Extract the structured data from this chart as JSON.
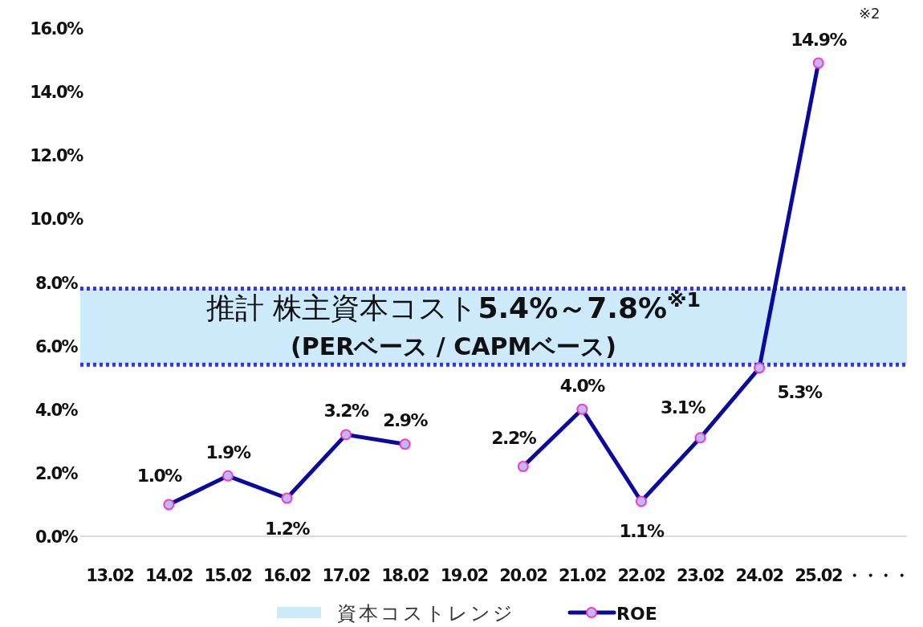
{
  "chart_data": {
    "type": "line",
    "categories": [
      "13.02",
      "14.02",
      "15.02",
      "16.02",
      "17.02",
      "18.02",
      "19.02",
      "20.02",
      "21.02",
      "22.02",
      "23.02",
      "24.02",
      "25.02",
      "・・・・"
    ],
    "series": [
      {
        "name": "ROE",
        "color": "#0a0aa0",
        "values": [
          null,
          1.0,
          1.9,
          1.2,
          3.2,
          2.9,
          null,
          2.2,
          4.0,
          1.1,
          3.1,
          5.3,
          14.9,
          null
        ],
        "value_labels": [
          null,
          "1.0%",
          "1.9%",
          "1.2%",
          "3.2%",
          "2.9%",
          null,
          "2.2%",
          "4.0%",
          "1.1%",
          "3.1%",
          "5.3%",
          "14.9%",
          null
        ]
      }
    ],
    "ylim": [
      0,
      16
    ],
    "yticks": [
      {
        "value": 0,
        "label": "0.0%"
      },
      {
        "value": 2,
        "label": "2.0%"
      },
      {
        "value": 4,
        "label": "4.0%"
      },
      {
        "value": 6,
        "label": "6.0%"
      },
      {
        "value": 8,
        "label": "8.0%"
      },
      {
        "value": 10,
        "label": "10.0%"
      },
      {
        "value": 12,
        "label": "12.0%"
      },
      {
        "value": 14,
        "label": "14.0%"
      },
      {
        "value": 16,
        "label": "16.0%"
      }
    ],
    "bands": [
      {
        "axis": "y",
        "from": 5.4,
        "to": 7.8,
        "label": "資本コストレンジ",
        "color": "#cdeafb"
      }
    ],
    "ref_lines": [
      {
        "axis": "y",
        "value": 5.4,
        "color": "#3535e8",
        "line_style": "dotted"
      },
      {
        "axis": "y",
        "value": 7.8,
        "color": "#3535e8",
        "line_style": "dotted"
      }
    ],
    "annotations": [
      "推計 株主資本コスト**5.4%～7.8%**$^{※1}$",
      "(PERベース / CAPMベース)",
      "※2"
    ],
    "marker": "circle",
    "legend": "bottom"
  }
}
